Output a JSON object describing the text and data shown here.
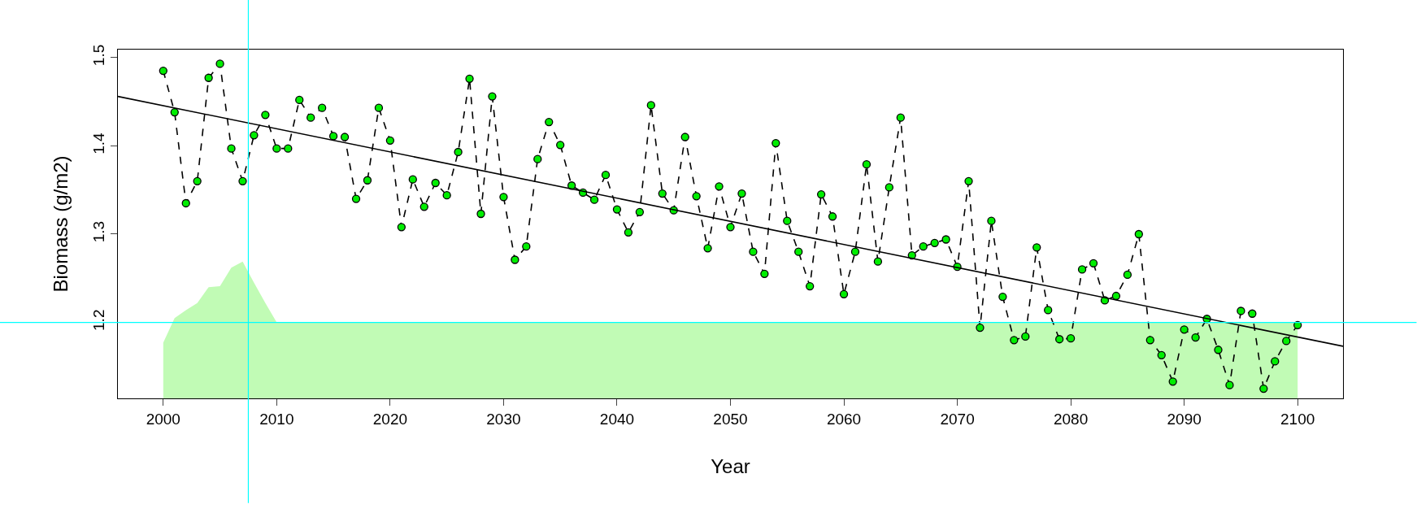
{
  "chart_data": {
    "type": "line",
    "xlabel": "Year",
    "ylabel": "Biomass (g/m2)",
    "xlim": [
      1996,
      2104
    ],
    "ylim": [
      1.114,
      1.509
    ],
    "xticks": [
      2000,
      2010,
      2020,
      2030,
      2040,
      2050,
      2060,
      2070,
      2080,
      2090,
      2100
    ],
    "yticks": [
      1.2,
      1.3,
      1.4,
      1.5
    ],
    "series": [
      {
        "type": "area",
        "color": "#c1fbb5",
        "x": [
          2000,
          2001,
          2002,
          2003,
          2004,
          2005,
          2006,
          2007,
          2008,
          2009,
          2010,
          2100
        ],
        "values": [
          1.177,
          1.205,
          1.214,
          1.222,
          1.24,
          1.241,
          1.262,
          1.269,
          1.245,
          1.222,
          1.2,
          1.2
        ]
      },
      {
        "color": "#00ee00",
        "line_style": "dashed",
        "marker": "circle",
        "x": [
          2000,
          2001,
          2002,
          2003,
          2004,
          2005,
          2006,
          2007,
          2008,
          2009,
          2010,
          2011,
          2012,
          2013,
          2014,
          2015,
          2016,
          2017,
          2018,
          2019,
          2020,
          2021,
          2022,
          2023,
          2024,
          2025,
          2026,
          2027,
          2028,
          2029,
          2030,
          2031,
          2032,
          2033,
          2034,
          2035,
          2036,
          2037,
          2038,
          2039,
          2040,
          2041,
          2042,
          2043,
          2044,
          2045,
          2046,
          2047,
          2048,
          2049,
          2050,
          2051,
          2052,
          2053,
          2054,
          2055,
          2056,
          2057,
          2058,
          2059,
          2060,
          2061,
          2062,
          2063,
          2064,
          2065,
          2066,
          2067,
          2068,
          2069,
          2070,
          2071,
          2072,
          2073,
          2074,
          2075,
          2076,
          2077,
          2078,
          2079,
          2080,
          2081,
          2082,
          2083,
          2084,
          2085,
          2086,
          2087,
          2088,
          2089,
          2090,
          2091,
          2092,
          2093,
          2094,
          2095,
          2096,
          2097,
          2098,
          2099,
          2100
        ],
        "values": [
          1.485,
          1.438,
          1.335,
          1.36,
          1.477,
          1.493,
          1.397,
          1.36,
          1.412,
          1.435,
          1.397,
          1.397,
          1.452,
          1.432,
          1.443,
          1.411,
          1.41,
          1.34,
          1.361,
          1.443,
          1.406,
          1.308,
          1.362,
          1.331,
          1.358,
          1.344,
          1.393,
          1.476,
          1.323,
          1.456,
          1.342,
          1.271,
          1.286,
          1.385,
          1.427,
          1.401,
          1.355,
          1.347,
          1.339,
          1.367,
          1.328,
          1.302,
          1.325,
          1.446,
          1.346,
          1.327,
          1.41,
          1.343,
          1.284,
          1.354,
          1.308,
          1.346,
          1.28,
          1.255,
          1.403,
          1.315,
          1.28,
          1.241,
          1.345,
          1.32,
          1.232,
          1.28,
          1.379,
          1.269,
          1.353,
          1.432,
          1.276,
          1.286,
          1.29,
          1.294,
          1.263,
          1.36,
          1.194,
          1.315,
          1.229,
          1.18,
          1.184,
          1.285,
          1.214,
          1.181,
          1.182,
          1.26,
          1.267,
          1.225,
          1.23,
          1.254,
          1.3,
          1.18,
          1.163,
          1.133,
          1.192,
          1.183,
          1.204,
          1.169,
          1.129,
          1.213,
          1.21,
          1.125,
          1.156,
          1.179,
          1.197
        ]
      },
      {
        "type": "line",
        "color": "#000000",
        "line_style": "solid",
        "x": [
          1996,
          2104
        ],
        "values": [
          1.456,
          1.173
        ]
      }
    ],
    "ref_lines": [
      {
        "axis": "x",
        "value": 2007.5,
        "color": "#00ffff"
      },
      {
        "axis": "y",
        "value": 1.2,
        "color": "#00ffff"
      }
    ]
  }
}
